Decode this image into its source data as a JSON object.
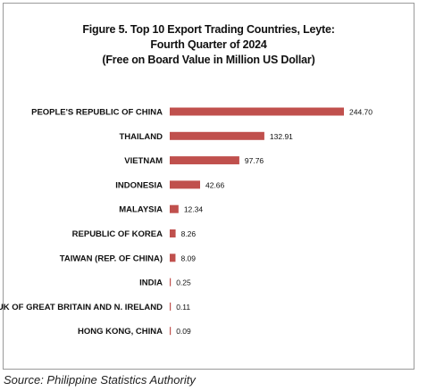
{
  "chart_data": {
    "type": "bar",
    "orientation": "horizontal",
    "title_lines": [
      "Figure 5. Top 10 Export Trading Countries, Leyte:",
      "Fourth Quarter of 2024",
      "(Free on Board Value in Million US Dollar)"
    ],
    "categories": [
      "PEOPLE'S REPUBLIC OF CHINA",
      "THAILAND",
      "VIETNAM",
      "INDONESIA",
      "MALAYSIA",
      "REPUBLIC OF KOREA",
      "TAIWAN (REP. OF CHINA)",
      "INDIA",
      "UK OF GREAT BRITAIN AND N. IRELAND",
      "HONG KONG, CHINA"
    ],
    "values": [
      244.7,
      132.91,
      97.76,
      42.66,
      12.34,
      8.26,
      8.09,
      0.25,
      0.11,
      0.09
    ],
    "value_labels": [
      "244.70",
      "132.91",
      "97.76",
      "42.66",
      "12.34",
      "8.26",
      "8.09",
      "0.25",
      "0.11",
      "0.09"
    ],
    "bar_color": "#c0504d",
    "grid": false,
    "legend": "none"
  },
  "source": "Source: Philippine Statistics Authority"
}
